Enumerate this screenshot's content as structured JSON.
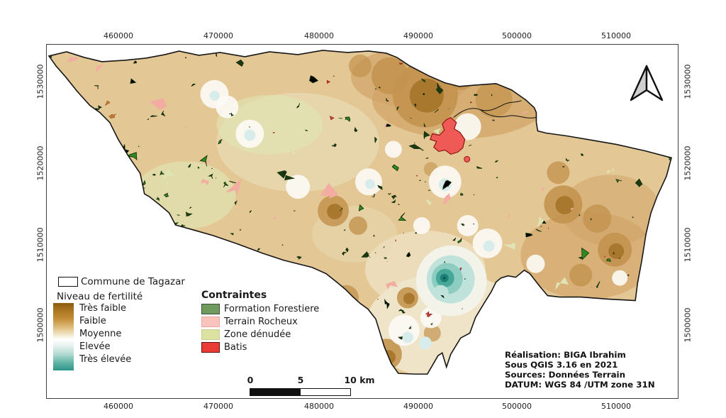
{
  "axes": {
    "x_ticks": [
      "460000",
      "470000",
      "480000",
      "490000",
      "500000",
      "510000"
    ],
    "y_ticks": [
      "1530000",
      "1520000",
      "1510000",
      "1500000"
    ]
  },
  "legend": {
    "commune": {
      "label": "Commune de Tagazar"
    },
    "fertility": {
      "title": "Niveau de fertilité",
      "items": [
        "Très faible",
        "Faible",
        "Moyenne",
        "Elevée",
        "Très élevée"
      ],
      "gradient_stops": [
        "#8a5c12 0%",
        "#a9741f 10%",
        "#c18a33 22%",
        "#d9b570 34%",
        "#efe0bb 45%",
        "#ffffff 54%",
        "#e4f0ec 64%",
        "#b2dad1 76%",
        "#63b5a7 88%",
        "#2e9487 100%"
      ]
    },
    "constraints": {
      "title": "Contraintes",
      "items": [
        {
          "label": "Formation Forestiere",
          "color": "#6f9b5e",
          "border": "#3f4d39"
        },
        {
          "label": "Terrain Rocheux",
          "color": "#fac4bd",
          "border": "#eaaaa2"
        },
        {
          "label": "Zone dénudée",
          "color": "#dce1a2",
          "border": "#c9cf8c"
        },
        {
          "label": "Batis",
          "color": "#ea3b34",
          "border": "#5f1210"
        }
      ]
    }
  },
  "scalebar": {
    "labels": [
      "0",
      "5",
      "10 km"
    ]
  },
  "credits": {
    "lines": [
      "Réalisation: BIGA Ibrahim",
      "Sous QGIS 3.16 en 2021",
      "Sources: Données Terrain",
      "DATUM:  WGS 84 /UTM zone 31N"
    ]
  },
  "north_arrow": "north-arrow",
  "map": {
    "region_label": "Commune de Tagazar",
    "colors": {
      "base": "#e3c794",
      "tan_dark": "#d2a468",
      "brown": "#c3934f",
      "brown_dark": "#a9782f",
      "cream": "#f6f2e4",
      "white": "#fcfaf4",
      "pale_blue": "#d9ecec",
      "teal_light": "#bfe2db",
      "teal_mid": "#8cccc1",
      "teal": "#47a89a",
      "teal_dark": "#1d8177",
      "forest": "#2e8c1e",
      "forest_dark": "#1c3a10",
      "forest_stroke": "#102d08",
      "pink": "#f3aca2",
      "denude": "#e0e4b4",
      "orange": "#c07a35",
      "batis": "#ef5a56",
      "batis_dark": "#8f1613",
      "boundary": "#161616"
    }
  }
}
